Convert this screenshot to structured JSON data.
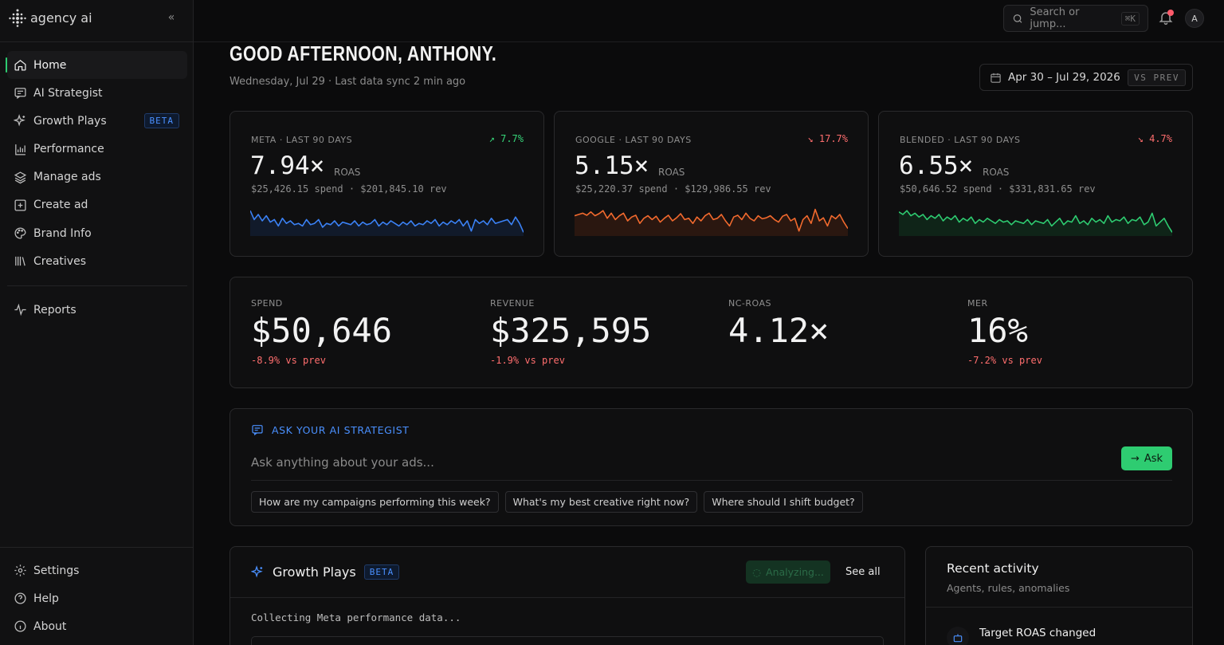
{
  "brand": {
    "name": "agency ai"
  },
  "sidebar": {
    "items": [
      {
        "label": "Home",
        "icon": "home-icon",
        "active": true
      },
      {
        "label": "AI Strategist",
        "icon": "chat-icon"
      },
      {
        "label": "Growth Plays",
        "icon": "sparkle-icon",
        "badge": "BETA"
      },
      {
        "label": "Performance",
        "icon": "bar-chart-icon"
      },
      {
        "label": "Manage ads",
        "icon": "layers-icon"
      },
      {
        "label": "Create ad",
        "icon": "plus-square-icon"
      },
      {
        "label": "Brand Info",
        "icon": "palette-icon"
      },
      {
        "label": "Creatives",
        "icon": "library-icon"
      }
    ],
    "secondary": [
      {
        "label": "Reports",
        "icon": "pulse-icon"
      }
    ],
    "footer": [
      {
        "label": "Settings",
        "icon": "gear-icon"
      },
      {
        "label": "Help",
        "icon": "help-icon"
      },
      {
        "label": "About",
        "icon": "info-icon"
      }
    ]
  },
  "topbar": {
    "search_placeholder": "Search or jump...",
    "search_shortcut": "⌘K",
    "avatar_initial": "A"
  },
  "header": {
    "greeting": "GOOD AFTERNOON, ANTHONY.",
    "subline": "Wednesday, Jul 29 · Last data sync 2 min ago",
    "date_range": "Apr 30 – Jul 29, 2026",
    "compare_label": "VS PREV"
  },
  "kpis": [
    {
      "label": "META · LAST 90 DAYS",
      "change": "↗ 7.7%",
      "direction": "up",
      "value": "7.94×",
      "unit": "ROAS",
      "sub": "$25,426.15 spend · $201,845.10 rev",
      "color": "#3b82f6",
      "fill": "#111a2a",
      "spark": [
        0.9,
        0.55,
        0.75,
        0.5,
        0.7,
        0.45,
        0.55,
        0.3,
        0.6,
        0.4,
        0.5,
        0.35,
        0.4,
        0.3,
        0.55,
        0.35,
        0.4,
        0.55,
        0.25,
        0.4,
        0.35,
        0.5,
        0.3,
        0.45,
        0.4,
        0.35,
        0.5,
        0.3,
        0.45,
        0.35,
        0.4,
        0.55,
        0.3,
        0.45,
        0.35,
        0.5,
        0.4,
        0.3,
        0.45,
        0.35,
        0.5,
        0.3,
        0.4,
        0.35,
        0.5,
        0.4,
        0.55,
        0.3,
        0.45,
        0.35,
        0.5,
        0.4,
        0.55,
        0.3,
        0.5,
        0.1,
        0.55,
        0.4,
        0.5,
        0.35,
        0.6,
        0.4,
        0.45,
        0.5,
        0.55,
        0.35,
        0.65,
        0.4,
        0.05
      ]
    },
    {
      "label": "GOOGLE · LAST 90 DAYS",
      "change": "↘ 17.7%",
      "direction": "down",
      "value": "5.15×",
      "unit": "ROAS",
      "sub": "$25,220.37 spend · $129,986.55 rev",
      "color": "#f26a2e",
      "fill": "#2a1710",
      "spark": [
        0.7,
        0.75,
        0.8,
        0.72,
        0.85,
        0.7,
        0.78,
        0.9,
        0.6,
        0.8,
        0.55,
        0.7,
        0.8,
        0.5,
        0.65,
        0.72,
        0.4,
        0.6,
        0.7,
        0.55,
        0.68,
        0.45,
        0.6,
        0.72,
        0.5,
        0.62,
        0.78,
        0.55,
        0.6,
        0.4,
        0.65,
        0.5,
        0.7,
        0.8,
        0.55,
        0.6,
        0.75,
        0.5,
        0.3,
        0.65,
        0.72,
        0.55,
        0.8,
        0.6,
        0.5,
        0.7,
        0.58,
        0.62,
        0.7,
        0.55,
        0.45,
        0.68,
        0.75,
        0.5,
        0.6,
        0.1,
        0.55,
        0.7,
        0.4,
        0.95,
        0.5,
        0.62,
        0.3,
        0.7,
        0.58,
        0.75,
        0.45,
        0.2
      ]
    },
    {
      "label": "BLENDED · LAST 90 DAYS",
      "change": "↘ 4.7%",
      "direction": "down",
      "value": "6.55×",
      "unit": "ROAS",
      "sub": "$50,646.52 spend · $331,831.65 rev",
      "color": "#2ecc71",
      "fill": "#0f2418",
      "spark": [
        0.85,
        0.75,
        0.9,
        0.7,
        0.8,
        0.65,
        0.75,
        0.55,
        0.7,
        0.6,
        0.75,
        0.5,
        0.65,
        0.55,
        0.7,
        0.45,
        0.6,
        0.5,
        0.65,
        0.4,
        0.55,
        0.45,
        0.6,
        0.5,
        0.4,
        0.55,
        0.45,
        0.5,
        0.35,
        0.5,
        0.45,
        0.4,
        0.55,
        0.35,
        0.5,
        0.45,
        0.4,
        0.55,
        0.3,
        0.45,
        0.6,
        0.35,
        0.5,
        0.45,
        0.7,
        0.4,
        0.5,
        0.35,
        0.6,
        0.45,
        0.55,
        0.4,
        0.7,
        0.45,
        0.55,
        0.5,
        0.65,
        0.4,
        0.55,
        0.5,
        0.65,
        0.35,
        0.45,
        0.8,
        0.3,
        0.45,
        0.6,
        0.3,
        0.05
      ]
    }
  ],
  "stats": [
    {
      "label": "SPEND",
      "value": "$50,646",
      "change": "-8.9% vs prev"
    },
    {
      "label": "REVENUE",
      "value": "$325,595",
      "change": "-1.9% vs prev"
    },
    {
      "label": "NC-ROAS",
      "value": "4.12×",
      "change": ""
    },
    {
      "label": "MER",
      "value": "16%",
      "change": "-7.2% vs prev"
    }
  ],
  "ask": {
    "title": "ASK YOUR AI STRATEGIST",
    "placeholder": "Ask anything about your ads...",
    "button": "Ask",
    "chips": [
      "How are my campaigns performing this week?",
      "What's my best creative right now?",
      "Where should I shift budget?"
    ]
  },
  "growth_plays": {
    "title": "Growth Plays",
    "badge": "BETA",
    "status": "Analyzing...",
    "see_all": "See all",
    "message": "Collecting Meta performance data..."
  },
  "recent_activity": {
    "title": "Recent activity",
    "subtitle": "Agents, rules, anomalies",
    "items": [
      {
        "title": "Target ROAS changed",
        "icon": "robot-icon"
      }
    ]
  }
}
